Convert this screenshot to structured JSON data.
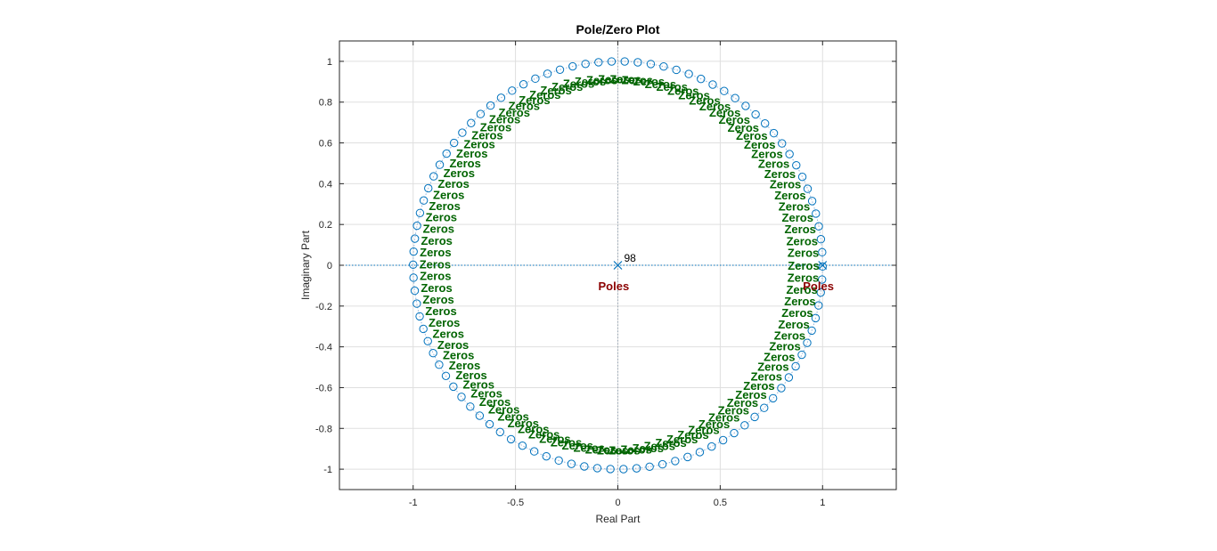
{
  "chart_data": {
    "type": "scatter",
    "title": "Pole/Zero Plot",
    "xlabel": "Real Part",
    "ylabel": "Imaginary Part",
    "xlim": [
      -1.36,
      1.36
    ],
    "ylim": [
      -1.1,
      1.1
    ],
    "xticks": [
      -1,
      -0.5,
      0,
      0.5,
      1
    ],
    "xtick_labels": [
      "-1",
      "-0.5",
      "0",
      "0.5",
      "1"
    ],
    "yticks": [
      -1,
      -0.8,
      -0.6,
      -0.4,
      -0.2,
      0,
      0.2,
      0.4,
      0.6,
      0.8,
      1
    ],
    "ytick_labels": [
      "-1",
      "-0.8",
      "-0.6",
      "-0.4",
      "-0.2",
      "0",
      "0.2",
      "0.4",
      "0.6",
      "0.8",
      "1"
    ],
    "grid": true,
    "unit_circle": true,
    "zeros": {
      "marker": "circle",
      "count": 98,
      "radius": 1,
      "angle_start_deg": 3.67,
      "angle_step_deg": 3.67,
      "label": "Zeros",
      "label_count": 98
    },
    "poles": [
      {
        "re": 0,
        "im": 0,
        "marker": "x",
        "multiplicity": 98
      },
      {
        "re": 1,
        "im": 0,
        "marker": "x",
        "multiplicity": 1
      }
    ],
    "pole_labels": [
      {
        "text": "Poles",
        "re": 0,
        "im": 0
      },
      {
        "text": "Poles",
        "re": 1,
        "im": 0
      }
    ],
    "multiplicity_label": "98",
    "colors": {
      "marker": "#0072BD",
      "zeros_text": "#006400",
      "poles_text": "#8B0000",
      "grid": "#DFDFDF",
      "axis": "#262626"
    }
  }
}
